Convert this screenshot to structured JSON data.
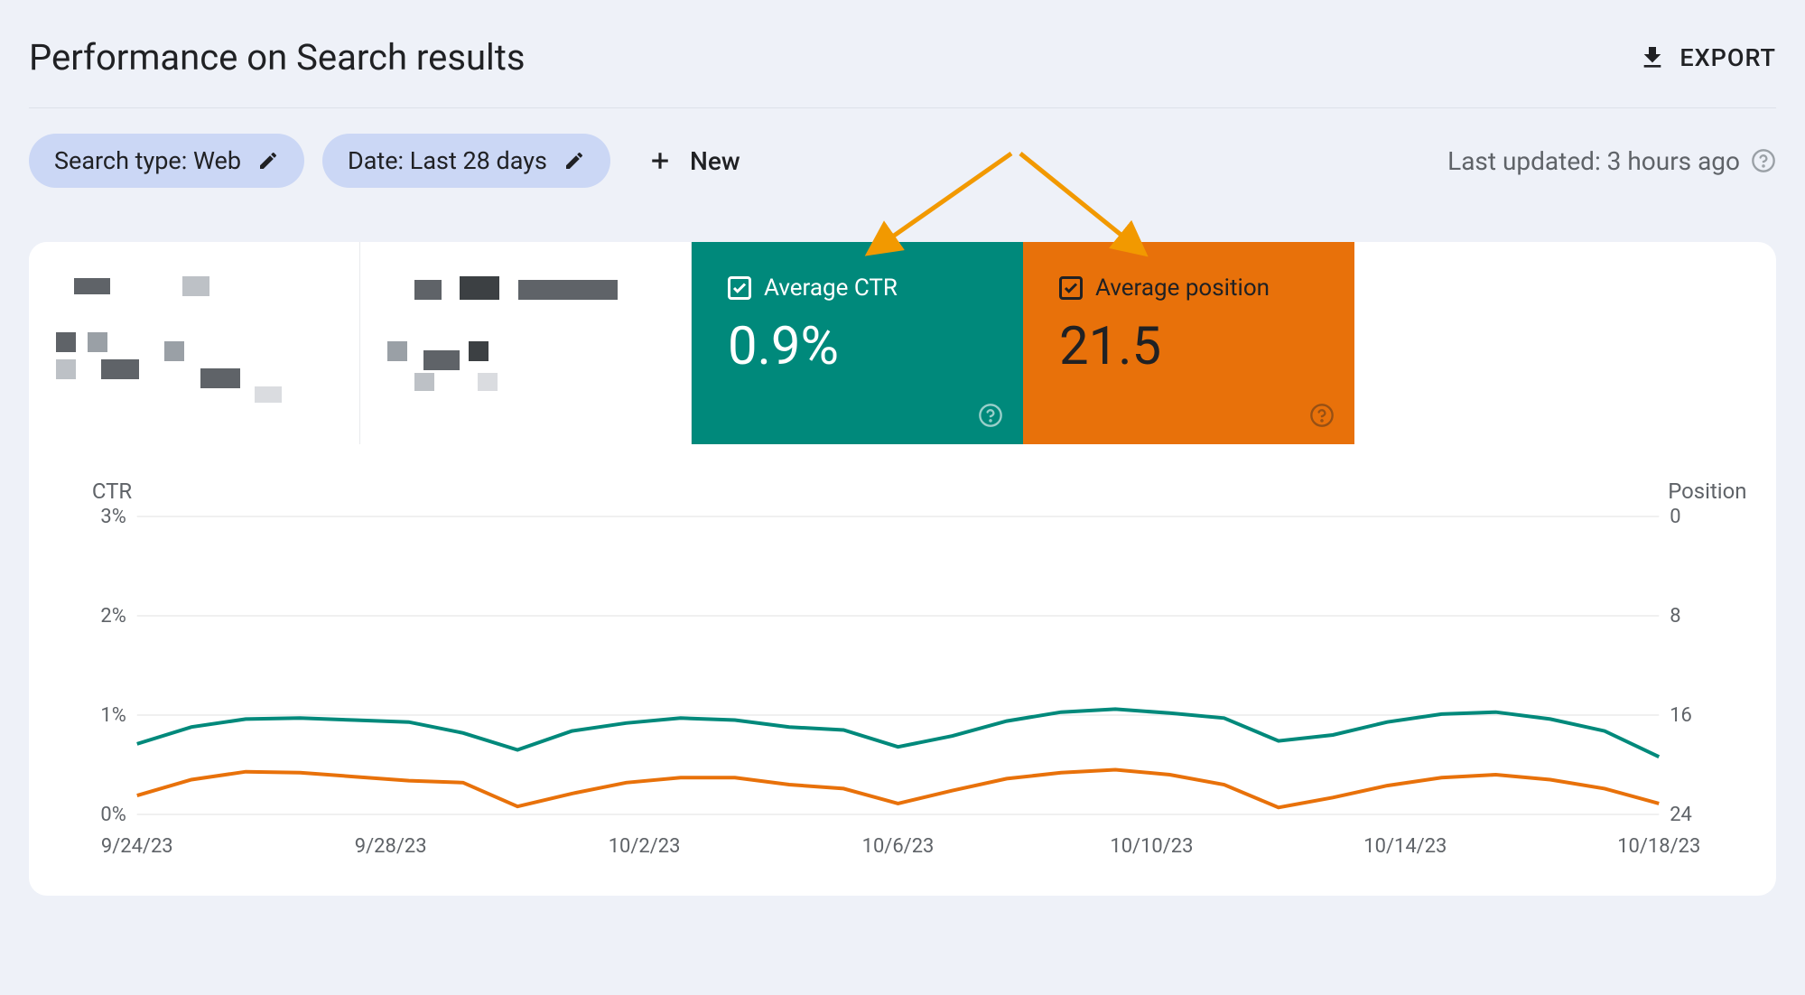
{
  "header": {
    "title": "Performance on Search results",
    "export_label": "EXPORT"
  },
  "filters": {
    "search_type_label": "Search type: Web",
    "date_label": "Date: Last 28 days",
    "new_label": "New",
    "last_updated": "Last updated: 3 hours ago"
  },
  "metrics": {
    "ctr": {
      "label": "Average CTR",
      "value": "0.9%",
      "bg_color": "#00897b",
      "text_color": "#ffffff",
      "checked": true
    },
    "position": {
      "label": "Average position",
      "value": "21.5",
      "bg_color": "#e8710a",
      "text_color": "#ffffff",
      "checked": true
    }
  },
  "annotation": {
    "arrow_color": "#f29900"
  },
  "chart": {
    "type": "line",
    "left_axis": {
      "title": "CTR",
      "ticks": [
        "3%",
        "2%",
        "1%",
        "0%"
      ],
      "ylim": [
        0,
        3
      ]
    },
    "right_axis": {
      "title": "Position",
      "ticks": [
        "0",
        "8",
        "16",
        "24"
      ],
      "ylim_inverted": [
        0,
        24
      ]
    },
    "x_labels": [
      "9/24/23",
      "9/28/23",
      "10/2/23",
      "10/6/23",
      "10/10/23",
      "10/14/23",
      "10/18/23"
    ],
    "grid_color": "#e0e0e0",
    "background_color": "#ffffff",
    "line_width": 4,
    "series": {
      "ctr": {
        "color": "#00897b",
        "values": [
          0.71,
          0.88,
          0.96,
          0.97,
          0.95,
          0.93,
          0.82,
          0.65,
          0.84,
          0.92,
          0.97,
          0.95,
          0.88,
          0.85,
          0.68,
          0.79,
          0.94,
          1.03,
          1.06,
          1.02,
          0.97,
          0.74,
          0.8,
          0.93,
          1.01,
          1.03,
          0.96,
          0.84,
          0.58
        ]
      },
      "position": {
        "color": "#e8710a",
        "values_ctr_scale": [
          0.19,
          0.35,
          0.43,
          0.42,
          0.38,
          0.34,
          0.32,
          0.08,
          0.21,
          0.32,
          0.37,
          0.37,
          0.3,
          0.26,
          0.11,
          0.24,
          0.36,
          0.42,
          0.45,
          0.4,
          0.3,
          0.07,
          0.17,
          0.29,
          0.37,
          0.4,
          0.35,
          0.26,
          0.11
        ]
      }
    }
  }
}
